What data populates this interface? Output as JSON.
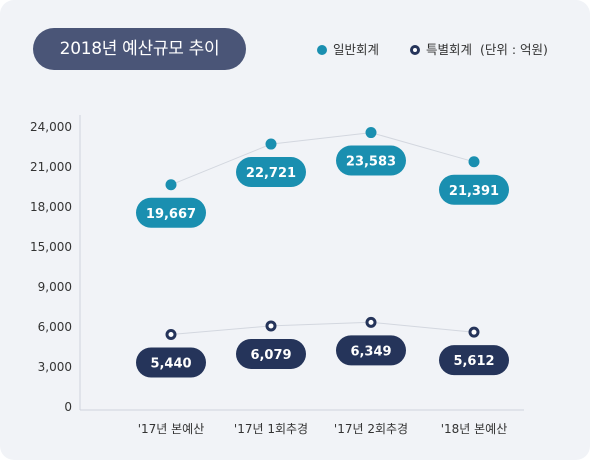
{
  "title": "2018년 예산규모 추이",
  "legend": {
    "general_label": "일반회계",
    "special_label": "특별회계",
    "unit_note": "(단위 : 억원)"
  },
  "colors": {
    "general": "#1a8fb0",
    "special": "#25345a",
    "title_bg": "#4a5577",
    "card_bg": "#f1f3f7"
  },
  "chart_data": {
    "type": "line",
    "categories": [
      "'17년 본예산",
      "'17년 1회추경",
      "'17년 2회추경",
      "'18년 본예산"
    ],
    "series": [
      {
        "name": "일반회계",
        "values": [
          19667,
          22721,
          23583,
          21391
        ],
        "labels": [
          "19,667",
          "22,721",
          "23,583",
          "21,391"
        ]
      },
      {
        "name": "특별회계",
        "values": [
          5440,
          6079,
          6349,
          5612
        ],
        "labels": [
          "5,440",
          "6,079",
          "6,349",
          "5,612"
        ]
      }
    ],
    "y_ticks": [
      "0",
      "3,000",
      "6,000",
      "9,000",
      "15,000",
      "18,000",
      "21,000",
      "24,000"
    ],
    "ylim": [
      0,
      24000
    ],
    "axis_break": "9,000 to 15,000",
    "grid": false,
    "legend_position": "top-right",
    "title": "2018년 예산규모 추이",
    "xlabel": "",
    "ylabel": ""
  }
}
